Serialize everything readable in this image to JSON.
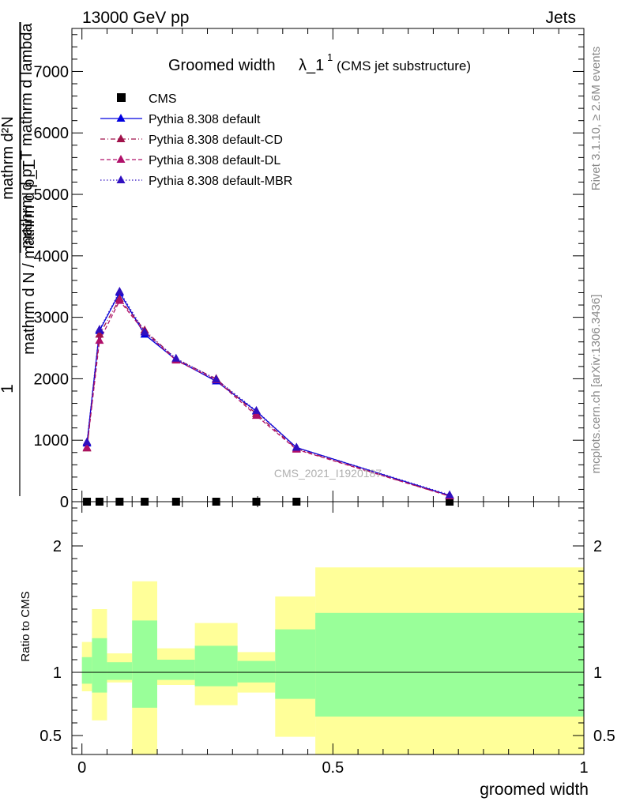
{
  "header": {
    "left": "13000 GeV pp",
    "right": "Jets"
  },
  "title": {
    "main": "Groomed width",
    "symbol": "λ_1",
    "superscript": "1",
    "sub": "(CMS jet substructure)"
  },
  "side_labels": {
    "rivet": "Rivet 3.1.10, ≥ 2.6M events",
    "mcplots": "mcplots.cern.ch [arXiv:1306.3436]"
  },
  "watermark": "CMS_2021_I1920187",
  "ylabel_main": {
    "outer_numerator": "1",
    "outer_denominator": "mathrm d N / mathrm d p_T",
    "inner_numerator": "mathrm d²N",
    "inner_denominator": "mathrm d p_T mathrm d lambda"
  },
  "ylabel_ratio": "Ratio to CMS",
  "xlabel": "groomed width",
  "legend": [
    {
      "label": "CMS",
      "color": "#000000",
      "marker": "square",
      "line": "none"
    },
    {
      "label": "Pythia 8.308 default",
      "color": "#0000e0",
      "marker": "triangle",
      "line": "solid"
    },
    {
      "label": "Pythia 8.308 default-CD",
      "color": "#a0124a",
      "marker": "triangle",
      "line": "dashdot"
    },
    {
      "label": "Pythia 8.308 default-DL",
      "color": "#b0106a",
      "marker": "triangle",
      "line": "dashed"
    },
    {
      "label": "Pythia 8.308 default-MBR",
      "color": "#3010c0",
      "marker": "triangle",
      "line": "dotted"
    }
  ],
  "chart_data": {
    "type": "line",
    "x": [
      0.01,
      0.035,
      0.075,
      0.125,
      0.1875,
      0.2675,
      0.3475,
      0.4275,
      0.7325
    ],
    "ylim": [
      0,
      7700
    ],
    "ratio_ylim": [
      0.35,
      2.35
    ],
    "xlim": [
      -0.02,
      1.0
    ],
    "yticks_major": [
      0,
      1000,
      2000,
      3000,
      4000,
      5000,
      6000,
      7000
    ],
    "ytick_labels": [
      "0",
      "1000",
      "2000",
      "3000",
      "4000",
      "5000",
      "6000",
      "7000"
    ],
    "xticks_major": [
      0,
      0.5,
      1
    ],
    "xtick_labels": [
      "0",
      "0.5",
      "1"
    ],
    "ratio_yticks": [
      0.5,
      1,
      2
    ],
    "ratio_ytick_labels": [
      "0.5",
      "1",
      "2"
    ],
    "series": [
      {
        "name": "CMS",
        "values": [
          0,
          0,
          0,
          0,
          0,
          0,
          0,
          0,
          0
        ]
      },
      {
        "name": "Pythia 8.308 default",
        "values": [
          950,
          2780,
          3400,
          2720,
          2310,
          1960,
          1470,
          880,
          100
        ]
      },
      {
        "name": "Pythia 8.308 default-CD",
        "values": [
          870,
          2720,
          3300,
          2790,
          2320,
          2000,
          1430,
          860,
          90
        ]
      },
      {
        "name": "Pythia 8.308 default-DL",
        "values": [
          880,
          2620,
          3270,
          2760,
          2300,
          1980,
          1400,
          850,
          90
        ]
      },
      {
        "name": "Pythia 8.308 default-MBR",
        "values": [
          970,
          2800,
          3420,
          2760,
          2330,
          1990,
          1480,
          880,
          110
        ]
      }
    ],
    "bands": [
      {
        "xlo": 0.0,
        "xhi": 0.02,
        "yellow": [
          0.85,
          1.24
        ],
        "green": [
          0.91,
          1.12
        ]
      },
      {
        "xlo": 0.02,
        "xhi": 0.05,
        "yellow": [
          0.62,
          1.5
        ],
        "green": [
          0.84,
          1.27
        ]
      },
      {
        "xlo": 0.05,
        "xhi": 0.1,
        "yellow": [
          0.92,
          1.15
        ],
        "green": [
          0.94,
          1.08
        ]
      },
      {
        "xlo": 0.1,
        "xhi": 0.15,
        "yellow": [
          0.35,
          1.72
        ],
        "green": [
          0.72,
          1.41
        ]
      },
      {
        "xlo": 0.15,
        "xhi": 0.225,
        "yellow": [
          0.9,
          1.19
        ],
        "green": [
          0.94,
          1.1
        ]
      },
      {
        "xlo": 0.225,
        "xhi": 0.31,
        "yellow": [
          0.74,
          1.39
        ],
        "green": [
          0.89,
          1.21
        ]
      },
      {
        "xlo": 0.31,
        "xhi": 0.385,
        "yellow": [
          0.84,
          1.16
        ],
        "green": [
          0.92,
          1.09
        ]
      },
      {
        "xlo": 0.385,
        "xhi": 0.465,
        "yellow": [
          0.49,
          1.6
        ],
        "green": [
          0.79,
          1.34
        ]
      },
      {
        "xlo": 0.465,
        "xhi": 1.0,
        "yellow": [
          0.35,
          1.83
        ],
        "green": [
          0.65,
          1.47
        ]
      }
    ],
    "colors": {
      "yellow_band": "#ffff99",
      "green_band": "#99ff99"
    },
    "grid": false,
    "legend_position": "top-left"
  }
}
